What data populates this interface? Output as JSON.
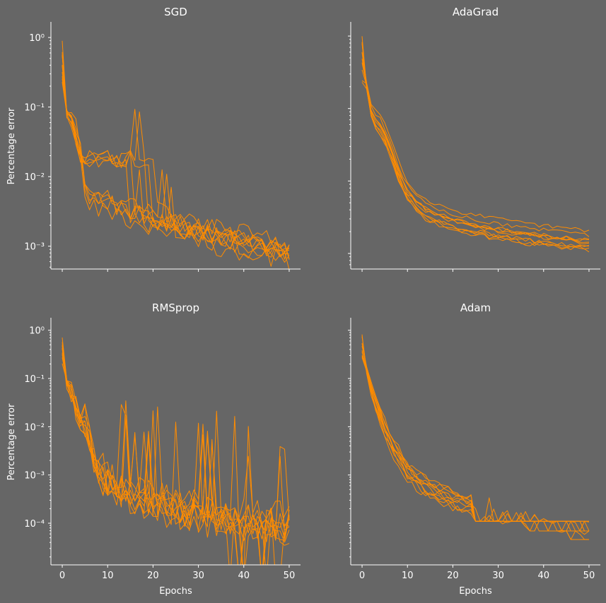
{
  "style": {
    "background": "#666666",
    "line_color": "#ff8c00",
    "axis_color": "#ffffff"
  },
  "chart_data": [
    {
      "type": "line",
      "title": "SGD",
      "xlabel": "",
      "ylabel": "Percentage error",
      "yscale": "log",
      "xlim": [
        -2.5,
        52.5
      ],
      "ylim": [
        0.00047,
        1.6
      ],
      "xticks": [
        0,
        10,
        20,
        30,
        40,
        50
      ],
      "show_xtick_labels": false,
      "yticks": [
        1,
        0.1,
        0.01,
        0.001
      ],
      "ytick_labels": [
        "10^0",
        "10^-1",
        "10^-2",
        "10^-3"
      ],
      "series_template": {
        "x": [
          0,
          1,
          2,
          3,
          4,
          5,
          6,
          8,
          10,
          12,
          14,
          16,
          18,
          20,
          22,
          24,
          26,
          28,
          30,
          32,
          34,
          36,
          38,
          40,
          42,
          44,
          46,
          48,
          50
        ],
        "base": [
          1.0,
          0.08,
          0.065,
          0.04,
          0.022,
          0.006,
          0.0052,
          0.0045,
          0.0042,
          0.0037,
          0.0032,
          0.0029,
          0.0027,
          0.0025,
          0.0023,
          0.0021,
          0.0019,
          0.00175,
          0.0016,
          0.00148,
          0.00138,
          0.0013,
          0.00122,
          0.00114,
          0.00106,
          0.001,
          0.00094,
          0.00089,
          0.00084
        ],
        "plateau": {
          "level": 0.018,
          "start": 4,
          "end_min": 13,
          "end_span": 9
        },
        "noise": 0.14,
        "extra_noise": 0.06,
        "spread": 0.16
      },
      "runs": 10,
      "seed": 11
    },
    {
      "type": "line",
      "title": "AdaGrad",
      "xlabel": "",
      "ylabel": "",
      "yscale": "log",
      "xlim": [
        -2.5,
        52.5
      ],
      "ylim": [
        0.00061,
        1.5
      ],
      "xticks": [
        0,
        10,
        20,
        30,
        40,
        50
      ],
      "show_xtick_labels": false,
      "yticks": [
        1,
        0.1,
        0.01,
        0.001
      ],
      "ytick_labels": [],
      "series_template": {
        "x": [
          0,
          1,
          2,
          3,
          4,
          5,
          6,
          7,
          8,
          9,
          10,
          12,
          14,
          16,
          18,
          20,
          22,
          24,
          26,
          28,
          30,
          32,
          34,
          36,
          38,
          40,
          42,
          44,
          46,
          48,
          50
        ],
        "base": [
          1.0,
          0.2,
          0.09,
          0.065,
          0.055,
          0.042,
          0.03,
          0.02,
          0.013,
          0.009,
          0.0068,
          0.0048,
          0.0038,
          0.0033,
          0.003,
          0.0027,
          0.0025,
          0.00235,
          0.00222,
          0.0021,
          0.002,
          0.0019,
          0.00182,
          0.00175,
          0.00168,
          0.00162,
          0.00157,
          0.00152,
          0.00147,
          0.00143,
          0.0014
        ],
        "noise": 0.03,
        "extra_noise": 0.0,
        "spread": 0.2
      },
      "runs": 10,
      "seed": 29
    },
    {
      "type": "line",
      "title": "RMSprop",
      "xlabel": "Epochs",
      "ylabel": "Percentage error",
      "yscale": "log",
      "xlim": [
        -2.5,
        52.5
      ],
      "ylim": [
        1.37e-05,
        1.7
      ],
      "xticks": [
        0,
        10,
        20,
        30,
        40,
        50
      ],
      "show_xtick_labels": true,
      "yticks": [
        1,
        0.1,
        0.01,
        0.001,
        0.0001
      ],
      "ytick_labels": [
        "10^0",
        "10^-1",
        "10^-2",
        "10^-3",
        "10^-4"
      ],
      "series_template": {
        "x": [
          0,
          1,
          2,
          3,
          4,
          5,
          6,
          7,
          8,
          9,
          10,
          11,
          12,
          13,
          14,
          15,
          16,
          17,
          18,
          19,
          20,
          21,
          22,
          23,
          24,
          25,
          26,
          27,
          28,
          29,
          30,
          31,
          32,
          33,
          34,
          35,
          36,
          37,
          38,
          39,
          40,
          41,
          42,
          43,
          44,
          45,
          46,
          47,
          48,
          49,
          50
        ],
        "base": [
          1.0,
          0.08,
          0.05,
          0.025,
          0.014,
          0.009,
          0.004,
          0.0022,
          0.0013,
          0.0009,
          0.0007,
          0.0006,
          0.00052,
          0.00046,
          0.00041,
          0.00037,
          0.00033,
          0.0003,
          0.00028,
          0.00026,
          0.00024,
          0.00022,
          0.00021,
          0.0002,
          0.00019,
          0.00018,
          0.00017,
          0.000165,
          0.00016,
          0.000155,
          0.00015,
          0.000145,
          0.00014,
          0.000135,
          0.00013,
          0.000125,
          0.00012,
          0.000115,
          0.00011,
          0.000108,
          0.000105,
          0.000102,
          0.0001,
          9.8e-05,
          9.6e-05,
          9.4e-05,
          9.2e-05,
          9e-05,
          8.8e-05,
          8.6e-05,
          8.5e-05
        ],
        "noise": 0.35,
        "spike_prob": 0.05,
        "dip_prob": 0.04,
        "spread": 0.2
      },
      "runs": 10,
      "seed": 47
    },
    {
      "type": "line",
      "title": "Adam",
      "xlabel": "Epochs",
      "ylabel": "",
      "yscale": "log",
      "xlim": [
        -2.5,
        52.5
      ],
      "ylim": [
        1.37e-05,
        1.7
      ],
      "xticks": [
        0,
        10,
        20,
        30,
        40,
        50
      ],
      "show_xtick_labels": true,
      "yticks": [
        1,
        0.1,
        0.01,
        0.001,
        0.0001
      ],
      "ytick_labels": [],
      "series_template": {
        "x": [
          0,
          1,
          2,
          3,
          4,
          5,
          6,
          7,
          8,
          9,
          10,
          12,
          14,
          16,
          18,
          20,
          22,
          24,
          26,
          28,
          30,
          32,
          34,
          36,
          38,
          40,
          42,
          44,
          46,
          48,
          50
        ],
        "base": [
          1.0,
          0.15,
          0.06,
          0.03,
          0.016,
          0.009,
          0.0055,
          0.0035,
          0.0024,
          0.0017,
          0.0012,
          0.0008,
          0.00058,
          0.00045,
          0.00037,
          0.00031,
          0.00027,
          0.00024,
          0.00021,
          0.00019,
          0.00017,
          0.000155,
          0.00014,
          0.00013,
          0.00012,
          0.00011,
          0.0001,
          9.2e-05,
          8.5e-05,
          7.8e-05,
          7.2e-05
        ],
        "noise": 0.08,
        "step_levels": [
          0.00011,
          6.9e-05,
          4.6e-05,
          2.3e-05
        ],
        "spread": 0.22
      },
      "runs": 10,
      "seed": 83
    }
  ]
}
